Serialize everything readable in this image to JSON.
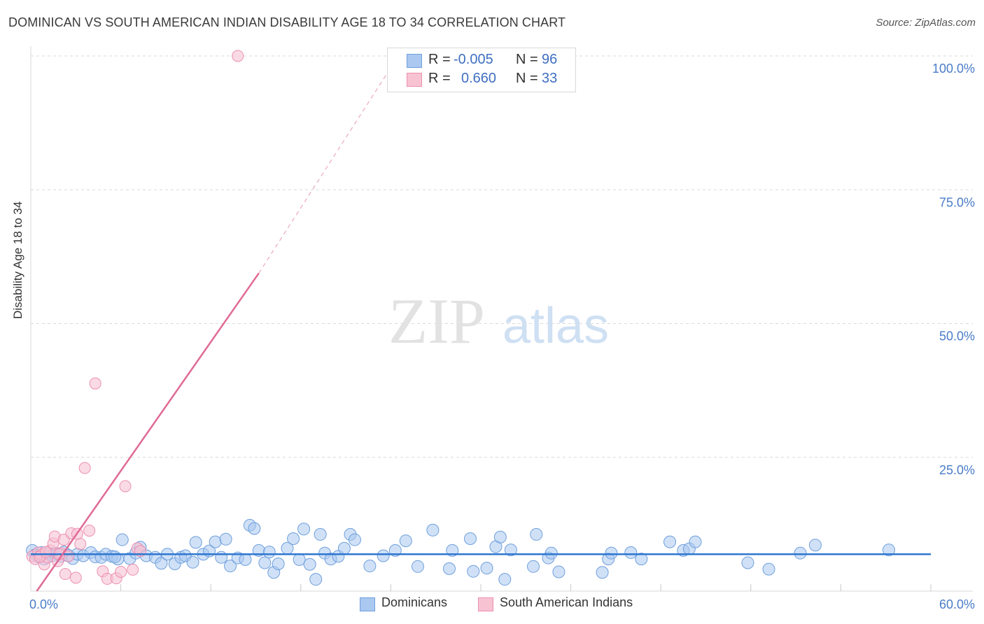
{
  "title": "DOMINICAN VS SOUTH AMERICAN INDIAN DISABILITY AGE 18 TO 34 CORRELATION CHART",
  "source": "Source: ZipAtlas.com",
  "watermark": {
    "zip": "ZIP",
    "atlas": "atlas"
  },
  "colors": {
    "blue_fill": "#aac8f0",
    "blue_stroke": "#6f9fdc",
    "blue_line": "#2f77d0",
    "pink_fill": "#f7c3d3",
    "pink_stroke": "#ec8fb0",
    "pink_line": "#e06a96",
    "tick_text": "#4a7cc7",
    "grid": "#d9d9d9"
  },
  "stats": [
    {
      "r_label": "R =",
      "r_value": "-0.005",
      "n_label": "N =",
      "n_value": "96"
    },
    {
      "r_label": "R =",
      "r_value": "0.660",
      "n_label": "N =",
      "n_value": "33"
    }
  ],
  "legend": [
    "Dominicans",
    "South American Indians"
  ],
  "chart_data": {
    "type": "scatter",
    "title": "DOMINICAN VS SOUTH AMERICAN INDIAN DISABILITY AGE 18 TO 34 CORRELATION CHART",
    "xlabel": "",
    "ylabel": "Disability Age 18 to 34",
    "xlim": [
      0,
      60
    ],
    "ylim": [
      0,
      100
    ],
    "x_tick_labels": [
      "0.0%",
      "60.0%"
    ],
    "y_ticks": [
      25,
      50,
      75,
      100
    ],
    "y_tick_labels": [
      "25.0%",
      "50.0%",
      "75.0%",
      "100.0%"
    ],
    "grid": true,
    "series": [
      {
        "name": "Dominicans",
        "trend": {
          "x": [
            0,
            60
          ],
          "y": [
            6.9,
            6.9
          ]
        },
        "points": [
          [
            0.1,
            7.6
          ],
          [
            0.3,
            6.8
          ],
          [
            0.5,
            6.4
          ],
          [
            0.7,
            7.2
          ],
          [
            0.9,
            6.0
          ],
          [
            1.2,
            7.0
          ],
          [
            1.4,
            6.6
          ],
          [
            1.6,
            7.1
          ],
          [
            2.0,
            6.5
          ],
          [
            2.2,
            7.3
          ],
          [
            2.5,
            6.7
          ],
          [
            2.8,
            6.1
          ],
          [
            3.1,
            6.9
          ],
          [
            3.5,
            6.6
          ],
          [
            4.0,
            7.2
          ],
          [
            4.3,
            6.4
          ],
          [
            4.7,
            6.3
          ],
          [
            5.0,
            6.9
          ],
          [
            5.4,
            6.5
          ],
          [
            5.8,
            6.0
          ],
          [
            6.1,
            9.6
          ],
          [
            6.6,
            6.1
          ],
          [
            7.0,
            7.1
          ],
          [
            7.3,
            8.2
          ],
          [
            7.7,
            6.6
          ],
          [
            8.3,
            6.3
          ],
          [
            8.7,
            5.2
          ],
          [
            9.1,
            6.9
          ],
          [
            9.6,
            5.1
          ],
          [
            10.0,
            6.3
          ],
          [
            10.3,
            6.6
          ],
          [
            10.8,
            5.4
          ],
          [
            11.0,
            9.1
          ],
          [
            11.5,
            6.9
          ],
          [
            11.9,
            7.5
          ],
          [
            12.3,
            9.2
          ],
          [
            12.7,
            6.3
          ],
          [
            13.0,
            9.7
          ],
          [
            13.3,
            4.7
          ],
          [
            13.8,
            6.2
          ],
          [
            14.3,
            5.9
          ],
          [
            14.6,
            12.3
          ],
          [
            14.9,
            11.7
          ],
          [
            15.2,
            7.6
          ],
          [
            15.6,
            5.3
          ],
          [
            15.9,
            7.3
          ],
          [
            16.2,
            3.5
          ],
          [
            16.5,
            5.1
          ],
          [
            17.1,
            8.0
          ],
          [
            17.5,
            9.8
          ],
          [
            17.9,
            5.9
          ],
          [
            18.2,
            11.6
          ],
          [
            18.6,
            5.0
          ],
          [
            19.0,
            2.2
          ],
          [
            19.3,
            10.6
          ],
          [
            19.6,
            7.1
          ],
          [
            20.0,
            6.0
          ],
          [
            20.5,
            6.5
          ],
          [
            20.9,
            8.0
          ],
          [
            21.3,
            10.6
          ],
          [
            21.6,
            9.6
          ],
          [
            22.6,
            4.7
          ],
          [
            23.5,
            6.6
          ],
          [
            24.3,
            7.6
          ],
          [
            25.0,
            9.4
          ],
          [
            25.8,
            4.6
          ],
          [
            26.8,
            11.4
          ],
          [
            27.9,
            4.2
          ],
          [
            28.1,
            7.6
          ],
          [
            29.3,
            9.8
          ],
          [
            29.5,
            3.7
          ],
          [
            30.4,
            4.3
          ],
          [
            31.0,
            8.3
          ],
          [
            31.3,
            10.1
          ],
          [
            31.6,
            2.2
          ],
          [
            32.0,
            7.7
          ],
          [
            33.5,
            4.6
          ],
          [
            33.7,
            10.6
          ],
          [
            34.5,
            6.2
          ],
          [
            34.7,
            7.1
          ],
          [
            35.2,
            3.6
          ],
          [
            38.1,
            3.5
          ],
          [
            38.5,
            6.0
          ],
          [
            38.7,
            7.1
          ],
          [
            40.0,
            7.2
          ],
          [
            40.7,
            6.0
          ],
          [
            42.6,
            9.2
          ],
          [
            43.5,
            7.6
          ],
          [
            43.9,
            7.9
          ],
          [
            44.3,
            9.2
          ],
          [
            47.8,
            5.3
          ],
          [
            49.2,
            4.1
          ],
          [
            51.3,
            7.1
          ],
          [
            52.3,
            8.6
          ],
          [
            57.2,
            7.7
          ],
          [
            5.6,
            6.4
          ]
        ]
      },
      {
        "name": "South American Indians",
        "trend": {
          "x": [
            0.4,
            15.2
          ],
          "y": [
            0,
            59.4
          ]
        },
        "trend_dashed": {
          "x": [
            15.2,
            24.5
          ],
          "y": [
            59.4,
            100
          ]
        },
        "points": [
          [
            0.1,
            6.5
          ],
          [
            0.3,
            6.0
          ],
          [
            0.5,
            7.2
          ],
          [
            0.7,
            6.8
          ],
          [
            0.9,
            5.0
          ],
          [
            1.1,
            6.3
          ],
          [
            1.3,
            7.6
          ],
          [
            1.5,
            8.9
          ],
          [
            1.6,
            10.2
          ],
          [
            1.8,
            5.6
          ],
          [
            2.0,
            7.1
          ],
          [
            2.2,
            9.6
          ],
          [
            2.3,
            3.2
          ],
          [
            2.5,
            6.5
          ],
          [
            2.7,
            10.8
          ],
          [
            3.0,
            2.5
          ],
          [
            3.1,
            10.7
          ],
          [
            3.3,
            8.8
          ],
          [
            3.6,
            23.0
          ],
          [
            3.9,
            11.3
          ],
          [
            4.3,
            38.8
          ],
          [
            4.8,
            3.7
          ],
          [
            5.1,
            2.3
          ],
          [
            5.7,
            2.4
          ],
          [
            6.0,
            3.6
          ],
          [
            6.3,
            19.6
          ],
          [
            6.8,
            4.0
          ],
          [
            7.1,
            8.0
          ],
          [
            7.3,
            7.5
          ],
          [
            13.8,
            100.0
          ],
          [
            0.6,
            6.4
          ],
          [
            1.0,
            7.3
          ],
          [
            1.9,
            6.9
          ]
        ]
      }
    ]
  }
}
